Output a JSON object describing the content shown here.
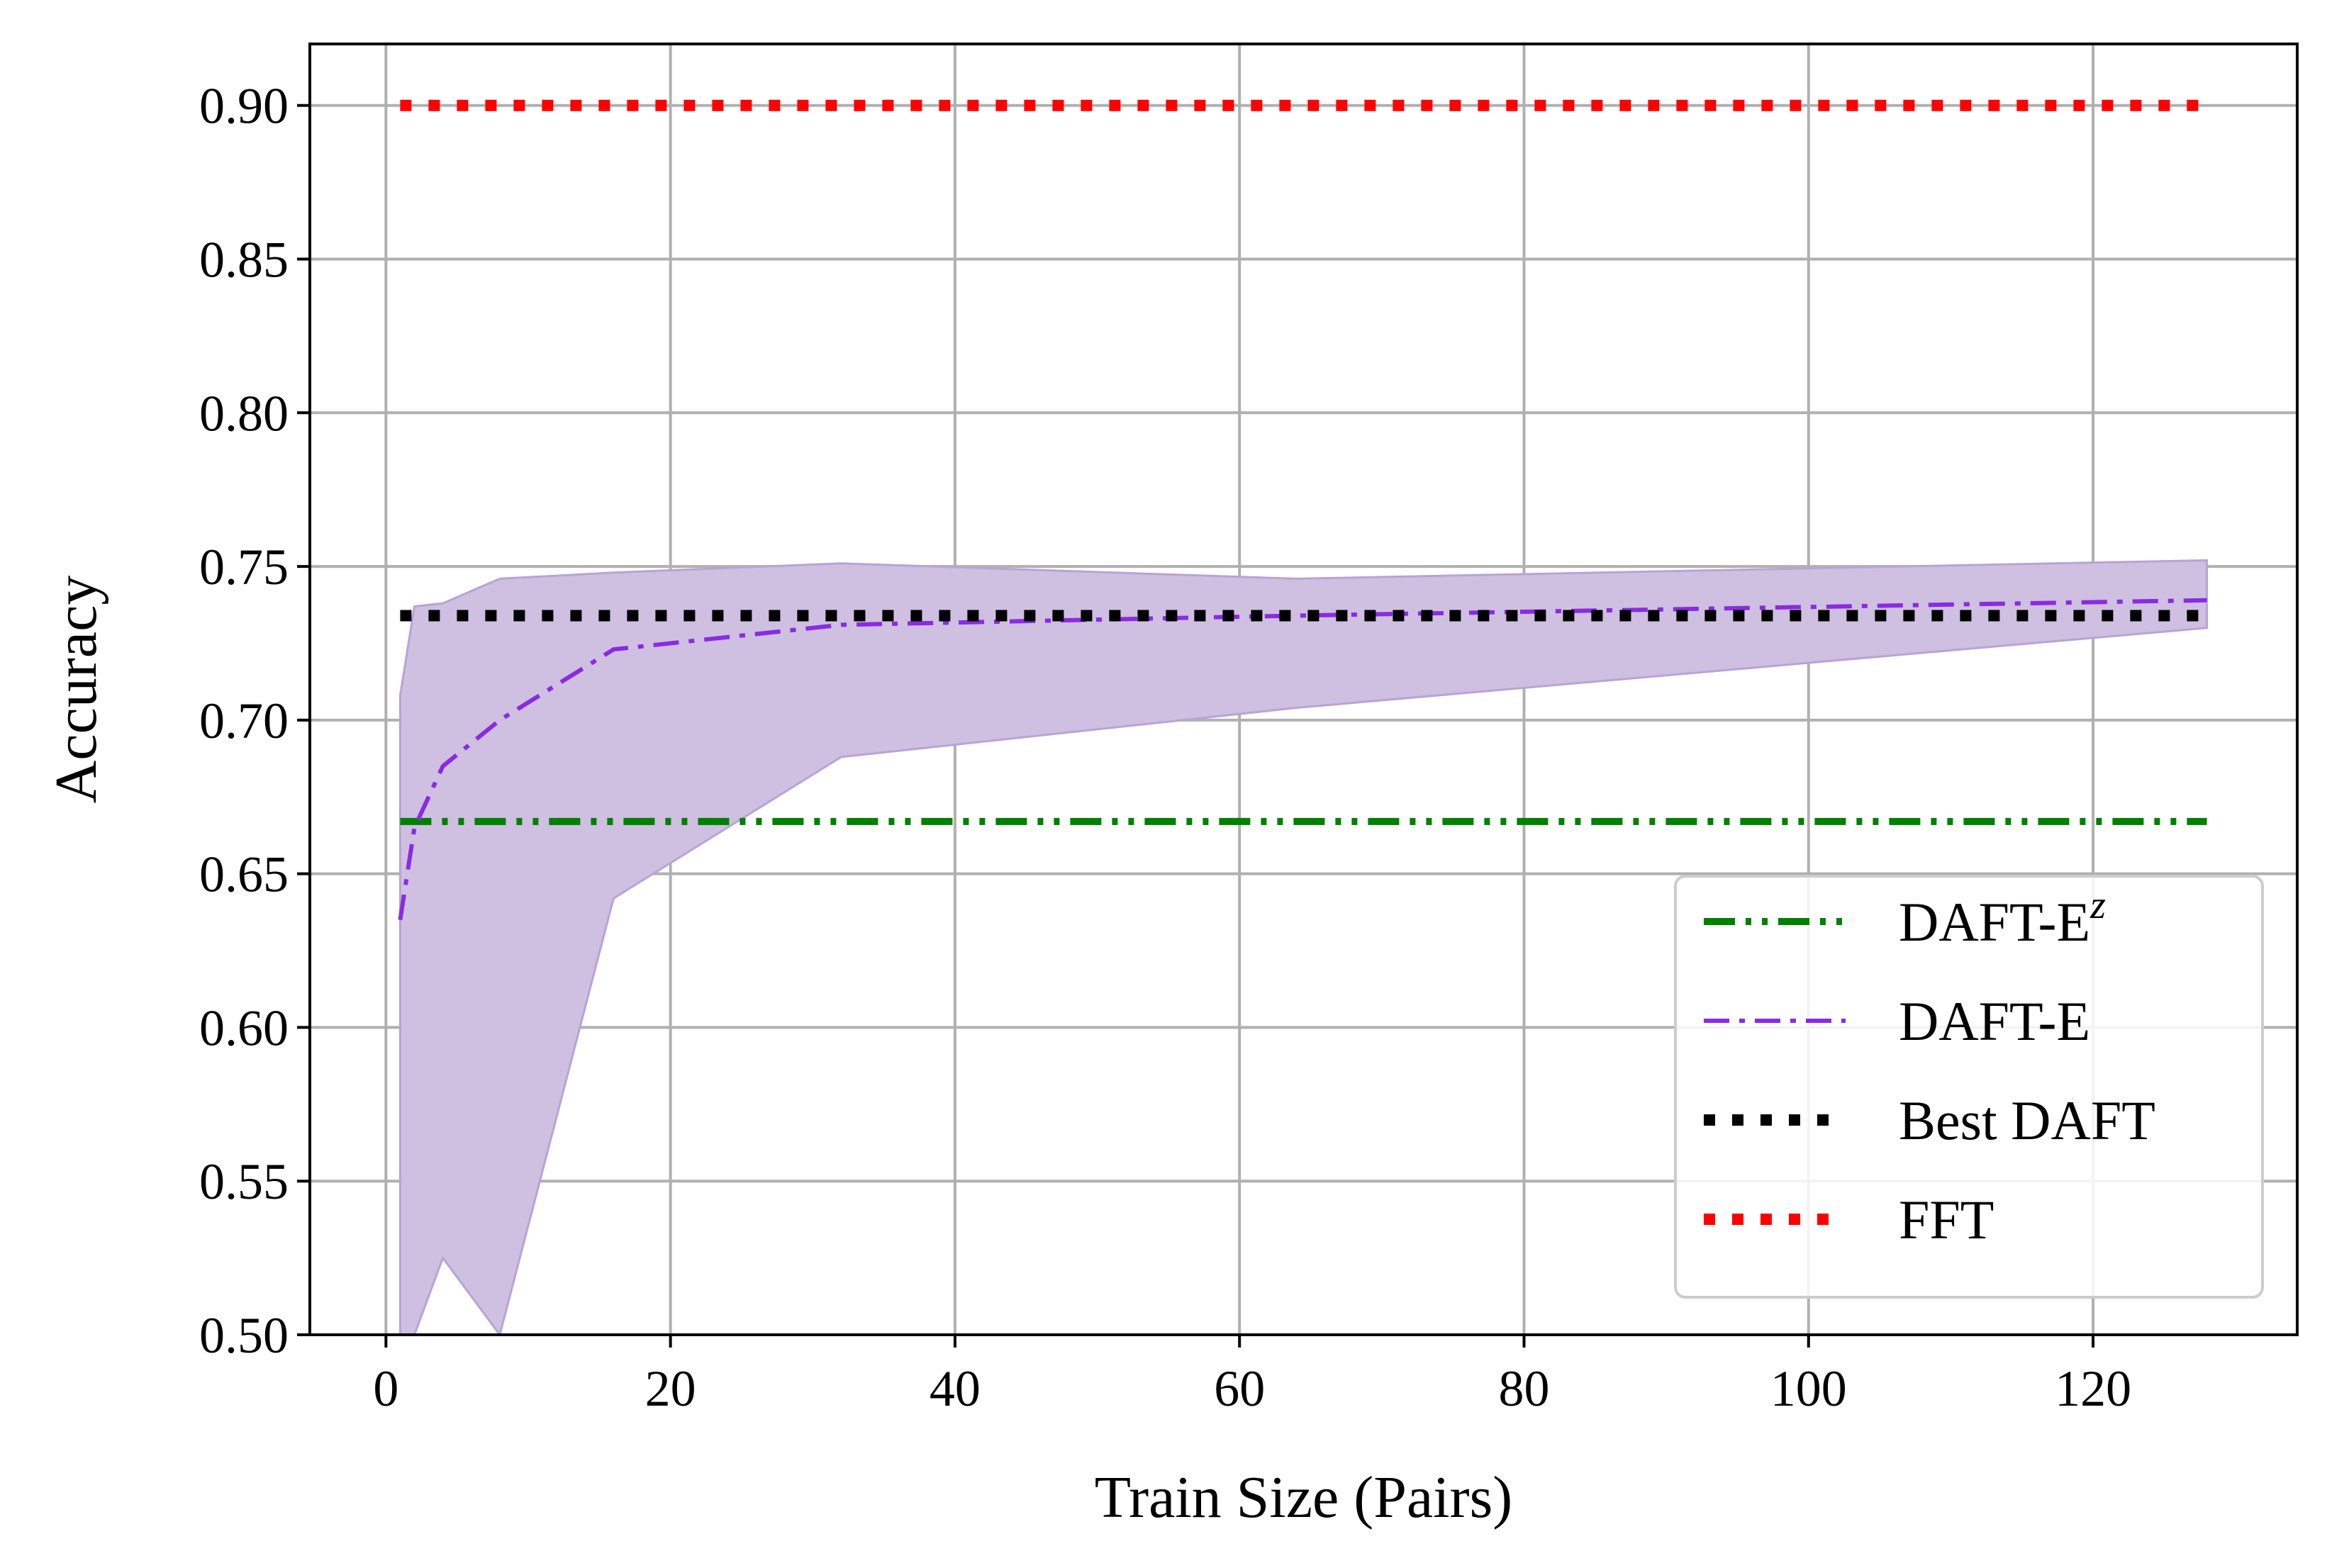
{
  "chart_data": {
    "type": "line",
    "xlabel": "Train Size (Pairs)",
    "ylabel": "Accuracy",
    "xlim": [
      -5.35,
      134.35
    ],
    "ylim": [
      0.5,
      0.92
    ],
    "xticks": [
      0,
      20,
      40,
      60,
      80,
      100,
      120
    ],
    "xtick_labels": [
      "0",
      "20",
      "40",
      "60",
      "80",
      "100",
      "120"
    ],
    "yticks": [
      0.5,
      0.55,
      0.6,
      0.65,
      0.7,
      0.75,
      0.8,
      0.85,
      0.9
    ],
    "ytick_labels": [
      "0.50",
      "0.55",
      "0.60",
      "0.65",
      "0.70",
      "0.75",
      "0.80",
      "0.85",
      "0.90"
    ],
    "grid": true,
    "legend_position": "lower-right",
    "series": [
      {
        "name": "DAFT-E",
        "name_base": "DAFT-E",
        "name_sup": "z",
        "kind": "hline",
        "color": "#008000",
        "style": "dash-dot-dot",
        "x": [
          1,
          128
        ],
        "y": [
          0.667,
          0.667
        ]
      },
      {
        "name": "DAFT-E",
        "kind": "line",
        "color": "#8a2be2",
        "style": "dash-dot",
        "x": [
          1,
          2,
          4,
          8,
          16,
          32,
          64,
          128
        ],
        "y": [
          0.635,
          0.665,
          0.685,
          0.7,
          0.723,
          0.731,
          0.734,
          0.739
        ],
        "band_upper": [
          0.708,
          0.737,
          0.738,
          0.746,
          0.748,
          0.751,
          0.746,
          0.752
        ],
        "band_lower": [
          0.5,
          0.5,
          0.525,
          0.5,
          0.642,
          0.688,
          0.704,
          0.73
        ],
        "band_color": "#cfbfe1"
      },
      {
        "name": "Best DAFT",
        "kind": "hline",
        "color": "#000000",
        "style": "dotted",
        "x": [
          1,
          128
        ],
        "y": [
          0.734,
          0.734
        ]
      },
      {
        "name": "FFT",
        "kind": "hline",
        "color": "#ff0000",
        "style": "dotted",
        "x": [
          1,
          128
        ],
        "y": [
          0.9,
          0.9
        ]
      }
    ]
  }
}
